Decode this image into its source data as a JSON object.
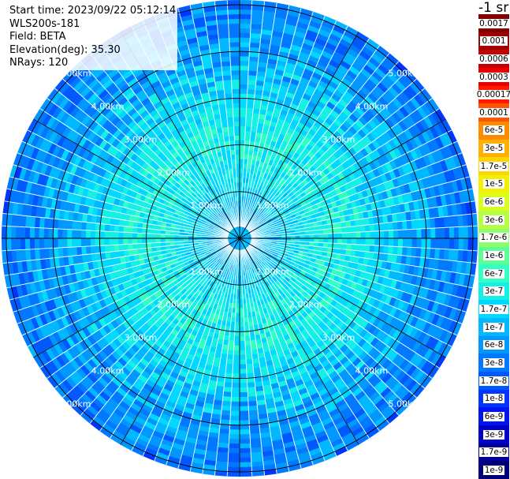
{
  "meta": {
    "start_time": "Start time: 2023/09/22 05:12:14",
    "instrument": "WLS200s-181",
    "field": "Field: BETA",
    "elevation": "Elevation(deg): 35.30",
    "nrays": "NRays: 120"
  },
  "colorbar": {
    "unit_label": "-1 sr",
    "levels": [
      {
        "label": "0.0017",
        "color": "#7f0000"
      },
      {
        "label": "0.001",
        "color": "#a00000"
      },
      {
        "label": "0.0006",
        "color": "#c40000"
      },
      {
        "label": "0.0003",
        "color": "#e80000"
      },
      {
        "label": "0.00017",
        "color": "#ff1a00"
      },
      {
        "label": "0.0001",
        "color": "#ff5400"
      },
      {
        "label": "6e-5",
        "color": "#ff8c00"
      },
      {
        "label": "3e-5",
        "color": "#ffb000"
      },
      {
        "label": "1.7e-5",
        "color": "#ffd400"
      },
      {
        "label": "1e-5",
        "color": "#f2f200"
      },
      {
        "label": "6e-6",
        "color": "#d8ff1f"
      },
      {
        "label": "3e-6",
        "color": "#b4ff44"
      },
      {
        "label": "1.7e-6",
        "color": "#8cff6a"
      },
      {
        "label": "1e-6",
        "color": "#60ff96"
      },
      {
        "label": "6e-7",
        "color": "#34ffc4"
      },
      {
        "label": "3e-7",
        "color": "#14f0e6"
      },
      {
        "label": "1.7e-7",
        "color": "#00d8ff"
      },
      {
        "label": "1e-7",
        "color": "#00b8ff"
      },
      {
        "label": "6e-8",
        "color": "#0098ff"
      },
      {
        "label": "3e-8",
        "color": "#0078ff"
      },
      {
        "label": "1.7e-8",
        "color": "#0058ff"
      },
      {
        "label": "1e-8",
        "color": "#0034ff"
      },
      {
        "label": "6e-9",
        "color": "#0014f0"
      },
      {
        "label": "3e-9",
        "color": "#0000c8"
      },
      {
        "label": "1.7e-9",
        "color": "#00009c"
      },
      {
        "label": "1e-9",
        "color": "#000078"
      }
    ]
  },
  "chart_data": {
    "type": "heatmap",
    "projection": "polar (PPI)",
    "field": "BETA",
    "elevation_deg": 35.3,
    "nrays": 120,
    "ray_spacing_deg": 3,
    "range_rings_km": [
      1.0,
      2.0,
      3.0,
      4.0,
      5.0
    ],
    "ring_labels": [
      "1.00km",
      "2.00km",
      "3.00km",
      "4.00km",
      "5.00km"
    ],
    "max_range_km": 5.1,
    "spoke_interval_deg": 30,
    "ring_label_azimuths_deg": [
      45,
      135,
      225,
      315
    ],
    "radial_profile": [
      {
        "range_km": 0.0,
        "value": 1e-07
      },
      {
        "range_km": 0.6,
        "value": 1e-07
      },
      {
        "range_km": 1.0,
        "value": 1.7e-07
      },
      {
        "range_km": 1.6,
        "value": 3e-07
      },
      {
        "range_km": 2.4,
        "value": 3e-07
      },
      {
        "range_km": 3.0,
        "value": 1.7e-07
      },
      {
        "range_km": 3.6,
        "value": 1e-07
      },
      {
        "range_km": 4.2,
        "value": 6e-08
      },
      {
        "range_km": 5.1,
        "value": 3e-08
      }
    ],
    "colors": {
      "grid": "#000000",
      "ray_gap": "#ffffff",
      "ring_label": "#ffffff"
    }
  }
}
